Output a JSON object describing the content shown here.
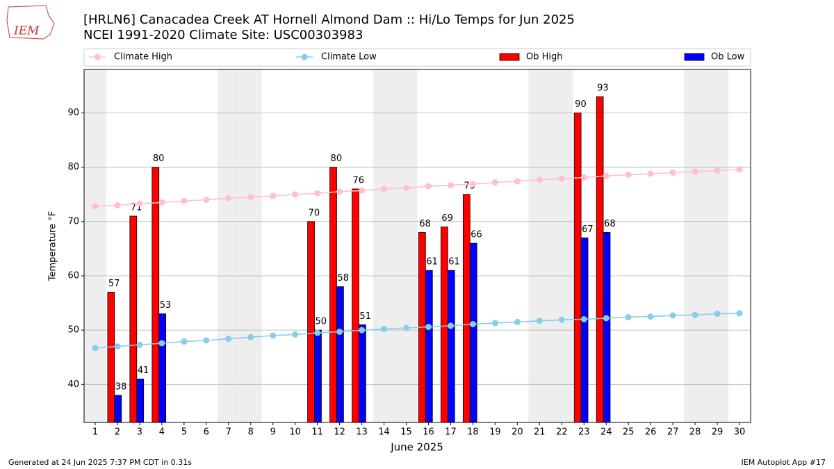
{
  "chart_data": {
    "type": "bar_line",
    "title": "[HRLN6] Canacadea Creek  AT Hornell Almond Dam :: Hi/Lo Temps for Jun 2025",
    "subtitle": "NCEI 1991-2020 Climate Site: USC00303983",
    "logo_text": "IEM",
    "x_label": "June 2025",
    "y_label": "Temperature °F",
    "footer_left": "Generated at 24 Jun 2025 7:37 PM CDT in 0.31s",
    "footer_right": "IEM Autoplot App #17",
    "x": [
      1,
      2,
      3,
      4,
      5,
      6,
      7,
      8,
      9,
      10,
      11,
      12,
      13,
      14,
      15,
      16,
      17,
      18,
      19,
      20,
      21,
      22,
      23,
      24,
      25,
      26,
      27,
      28,
      29,
      30
    ],
    "xlim": [
      0.5,
      30.5
    ],
    "xticks": [
      1,
      2,
      3,
      4,
      5,
      6,
      7,
      8,
      9,
      10,
      11,
      12,
      13,
      14,
      15,
      16,
      17,
      18,
      19,
      20,
      21,
      22,
      23,
      24,
      25,
      26,
      27,
      28,
      29,
      30
    ],
    "ylim": [
      33,
      98
    ],
    "yticks": [
      40,
      50,
      60,
      70,
      80,
      90
    ],
    "grid": true,
    "shaded_days": [
      1,
      7,
      8,
      14,
      15,
      21,
      22,
      28,
      29
    ],
    "shade_color": "#eeeeee",
    "series": [
      {
        "name": "Climate High",
        "style": "line",
        "color": "#ffc0cb",
        "values": [
          72.8,
          73.0,
          73.3,
          73.5,
          73.8,
          74.0,
          74.3,
          74.5,
          74.7,
          75.0,
          75.2,
          75.5,
          75.7,
          76.0,
          76.2,
          76.5,
          76.7,
          76.9,
          77.2,
          77.4,
          77.7,
          77.9,
          78.1,
          78.4,
          78.6,
          78.8,
          79.0,
          79.2,
          79.4,
          79.6
        ]
      },
      {
        "name": "Climate Low",
        "style": "line",
        "color": "#87ceeb",
        "values": [
          46.7,
          47.0,
          47.3,
          47.6,
          47.9,
          48.1,
          48.4,
          48.7,
          49.0,
          49.2,
          49.5,
          49.7,
          50.0,
          50.2,
          50.4,
          50.6,
          50.8,
          51.1,
          51.3,
          51.5,
          51.7,
          51.9,
          52.0,
          52.2,
          52.4,
          52.5,
          52.7,
          52.8,
          53.0,
          53.1
        ]
      },
      {
        "name": "Ob High",
        "style": "bar",
        "color": "#ff0000",
        "values": [
          null,
          57,
          71,
          80,
          null,
          null,
          null,
          null,
          null,
          null,
          70,
          80,
          76,
          null,
          null,
          68,
          69,
          75,
          null,
          null,
          null,
          null,
          90,
          93,
          null,
          null,
          null,
          null,
          null,
          null
        ]
      },
      {
        "name": "Ob Low",
        "style": "bar",
        "color": "#0000ff",
        "values": [
          null,
          38,
          41,
          53,
          null,
          null,
          null,
          null,
          null,
          null,
          50,
          58,
          51,
          null,
          null,
          61,
          61,
          66,
          null,
          null,
          null,
          null,
          67,
          68,
          null,
          null,
          null,
          null,
          null,
          null
        ]
      }
    ]
  }
}
